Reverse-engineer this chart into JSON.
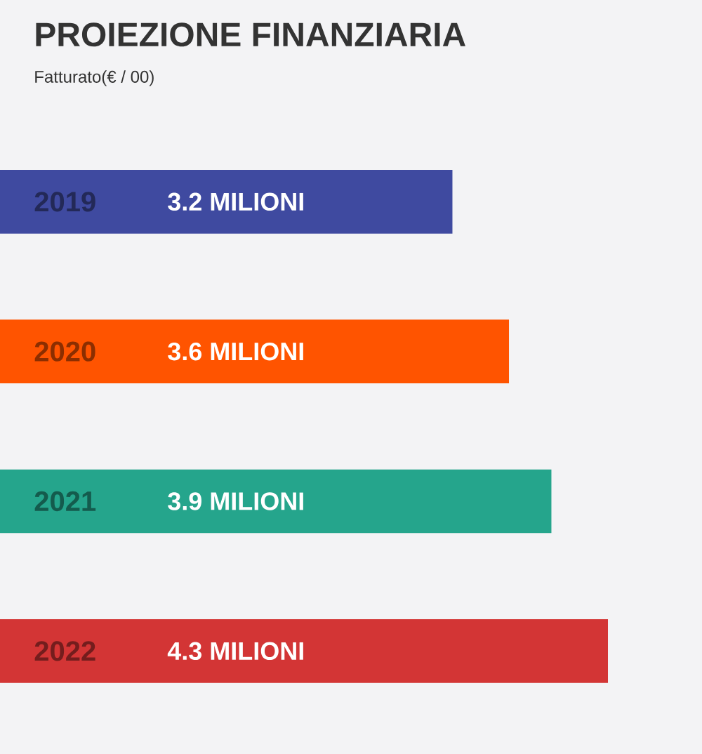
{
  "chart_data": {
    "type": "bar",
    "orientation": "horizontal",
    "title": "PROIEZIONE FINANZIARIA",
    "subtitle": "Fatturato(€ / 00)",
    "categories": [
      "2019",
      "2020",
      "2021",
      "2022"
    ],
    "values": [
      3.2,
      3.6,
      3.9,
      4.3
    ],
    "value_labels": [
      "3.2 MILIONI",
      "3.6 MILIONI",
      "3.9 MILIONI",
      "4.3 MILIONI"
    ],
    "colors": [
      "#3f4aa0",
      "#ff5400",
      "#25a58c",
      "#d33535"
    ]
  }
}
